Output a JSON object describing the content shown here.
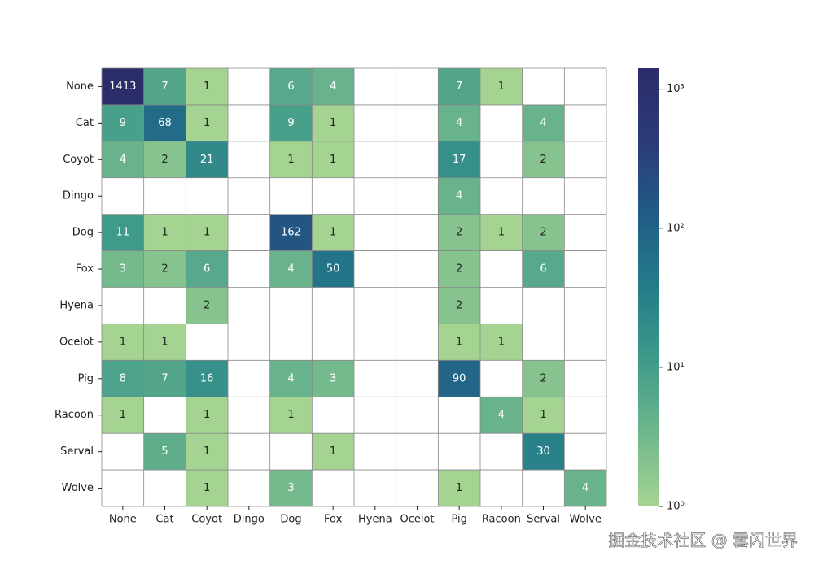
{
  "chart_data": {
    "type": "heatmap",
    "row_categories": [
      "None",
      "Cat",
      "Coyot",
      "Dingo",
      "Dog",
      "Fox",
      "Hyena",
      "Ocelot",
      "Pig",
      "Racoon",
      "Serval",
      "Wolve"
    ],
    "col_categories": [
      "None",
      "Cat",
      "Coyot",
      "Dingo",
      "Dog",
      "Fox",
      "Hyena",
      "Ocelot",
      "Pig",
      "Racoon",
      "Serval",
      "Wolve"
    ],
    "values": [
      [
        1413,
        7,
        1,
        null,
        6,
        4,
        null,
        null,
        7,
        1,
        null,
        null
      ],
      [
        9,
        68,
        1,
        null,
        9,
        1,
        null,
        null,
        4,
        null,
        4,
        null
      ],
      [
        4,
        2,
        21,
        null,
        1,
        1,
        null,
        null,
        17,
        null,
        2,
        null
      ],
      [
        null,
        null,
        null,
        null,
        null,
        null,
        null,
        null,
        4,
        null,
        null,
        null
      ],
      [
        11,
        1,
        1,
        null,
        162,
        1,
        null,
        null,
        2,
        1,
        2,
        null
      ],
      [
        3,
        2,
        6,
        null,
        4,
        50,
        null,
        null,
        2,
        null,
        6,
        null
      ],
      [
        null,
        null,
        2,
        null,
        null,
        null,
        null,
        null,
        2,
        null,
        null,
        null
      ],
      [
        1,
        1,
        null,
        null,
        null,
        null,
        null,
        null,
        1,
        1,
        null,
        null
      ],
      [
        8,
        7,
        16,
        null,
        4,
        3,
        null,
        null,
        90,
        null,
        2,
        null
      ],
      [
        1,
        null,
        1,
        null,
        1,
        null,
        null,
        null,
        null,
        4,
        1,
        null
      ],
      [
        null,
        5,
        1,
        null,
        null,
        1,
        null,
        null,
        null,
        null,
        30,
        null
      ],
      [
        null,
        null,
        1,
        null,
        3,
        null,
        null,
        null,
        1,
        null,
        null,
        4
      ]
    ],
    "colormap": [
      "#a5d492",
      "#6fb78c",
      "#3f9a8a",
      "#247c89",
      "#215c86",
      "#2c3a79",
      "#2b2d6a"
    ],
    "log_scale": true,
    "zlim": [
      1,
      1413
    ],
    "zticks": [
      {
        "value": 1,
        "label": "10⁰"
      },
      {
        "value": 10,
        "label": "10¹"
      },
      {
        "value": 100,
        "label": "10²"
      },
      {
        "value": 1000,
        "label": "10³"
      }
    ],
    "watermark": "掘金技术社区 @ 雲闪世界"
  }
}
